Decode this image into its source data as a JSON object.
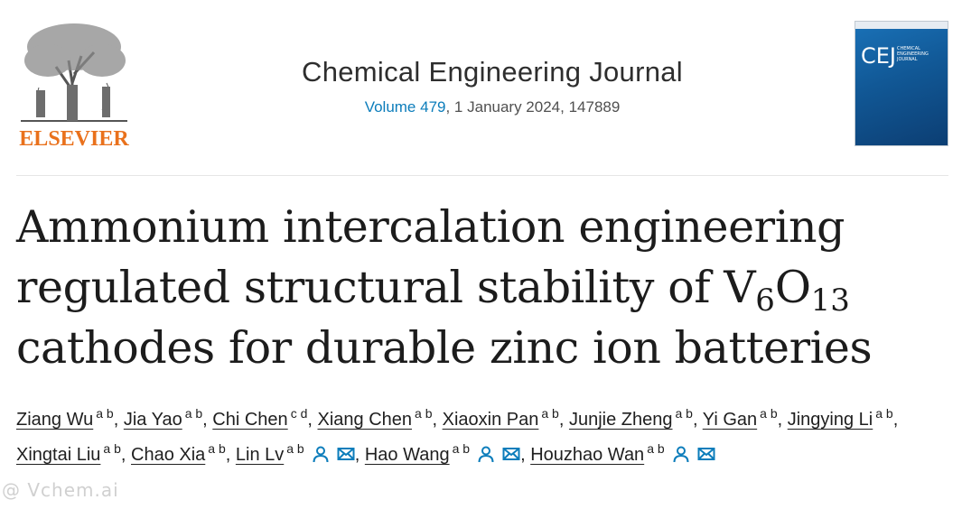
{
  "publisher": {
    "name": "ELSEVIER"
  },
  "journal": {
    "title": "Chemical Engineering Journal",
    "volume_link": "Volume 479",
    "issue_rest": ", 1 January 2024, 147889",
    "cover_abbrev": "CEJ",
    "cover_name_lines": [
      "CHEMICAL",
      "ENGINEERING",
      "JOURNAL"
    ]
  },
  "article": {
    "title_line1": "Ammonium intercalation engineering",
    "title_line2_pre": "regulated structural stability of V",
    "title_sub1": "6",
    "title_mid": "O",
    "title_sub2": "13",
    "title_line3": "cathodes for durable zinc ion batteries"
  },
  "authors": [
    {
      "name": "Ziang Wu",
      "aff": "a b",
      "person": false,
      "email": false
    },
    {
      "name": "Jia Yao",
      "aff": "a b",
      "person": false,
      "email": false
    },
    {
      "name": "Chi Chen",
      "aff": "c d",
      "person": false,
      "email": false
    },
    {
      "name": "Xiang Chen",
      "aff": "a b",
      "person": false,
      "email": false
    },
    {
      "name": "Xiaoxin Pan",
      "aff": "a b",
      "person": false,
      "email": false
    },
    {
      "name": "Junjie Zheng",
      "aff": "a b",
      "person": false,
      "email": false
    },
    {
      "name": "Yi Gan",
      "aff": "a b",
      "person": false,
      "email": false
    },
    {
      "name": "Jingying Li",
      "aff": "a b",
      "person": false,
      "email": false
    },
    {
      "name": "Xingtai Liu",
      "aff": "a b",
      "person": false,
      "email": false
    },
    {
      "name": "Chao Xia",
      "aff": "a b",
      "person": false,
      "email": false
    },
    {
      "name": "Lin Lv",
      "aff": "a b",
      "person": true,
      "email": true
    },
    {
      "name": "Hao Wang",
      "aff": "a b",
      "person": true,
      "email": true
    },
    {
      "name": "Houzhao Wan",
      "aff": "a b",
      "person": true,
      "email": true
    }
  ],
  "separator": ",",
  "watermark": "@ Vchem.ai",
  "colors": {
    "link": "#0c7dbb",
    "elsevier_orange": "#e9711c",
    "cover_blue": "#115896"
  },
  "icons": {
    "person": "person-icon",
    "email": "envelope-icon"
  }
}
